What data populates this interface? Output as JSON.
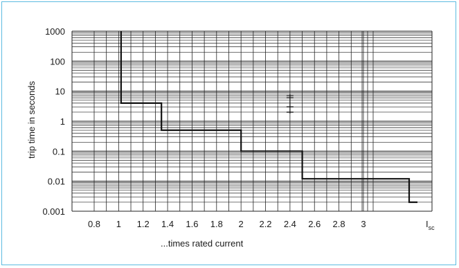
{
  "chart_data": {
    "type": "line",
    "title": "",
    "xlabel": "...times rated current",
    "ylabel": "trip time in seconds",
    "y_scale": "log",
    "ylim": [
      0.001,
      1000
    ],
    "grid": true,
    "x_tick_labels": [
      "0.8",
      "1",
      "1.2",
      "1.4",
      "1.6",
      "1.8",
      "2",
      "2.2",
      "2.4",
      "2.6",
      "2.8",
      "3"
    ],
    "x_tick_values": [
      0.8,
      1,
      1.2,
      1.4,
      1.6,
      1.8,
      2,
      2.2,
      2.4,
      2.6,
      2.8,
      3
    ],
    "x_special_label": {
      "main": "I",
      "sub": "sc"
    },
    "y_tick_labels": [
      "1000",
      "100",
      "10",
      "1",
      "0.1",
      "0.01",
      "0.001"
    ],
    "y_tick_values": [
      1000,
      100,
      10,
      1,
      0.1,
      0.01,
      0.001
    ],
    "series": [
      {
        "x": [
          1.02,
          1.02,
          1.35,
          1.35,
          2.0,
          2.0,
          2.5,
          2.5,
          3.95,
          3.95,
          4.1
        ],
        "y": [
          1000,
          4,
          4,
          0.5,
          0.5,
          0.1,
          0.1,
          0.012,
          0.012,
          0.002,
          0.002
        ]
      }
    ],
    "tolerance_marker": {
      "x": 2.4,
      "y_values": [
        7,
        6,
        3,
        2
      ]
    },
    "colors": {
      "line": "#111111",
      "grid": "#222222",
      "frame": "#5bbbe0"
    }
  }
}
